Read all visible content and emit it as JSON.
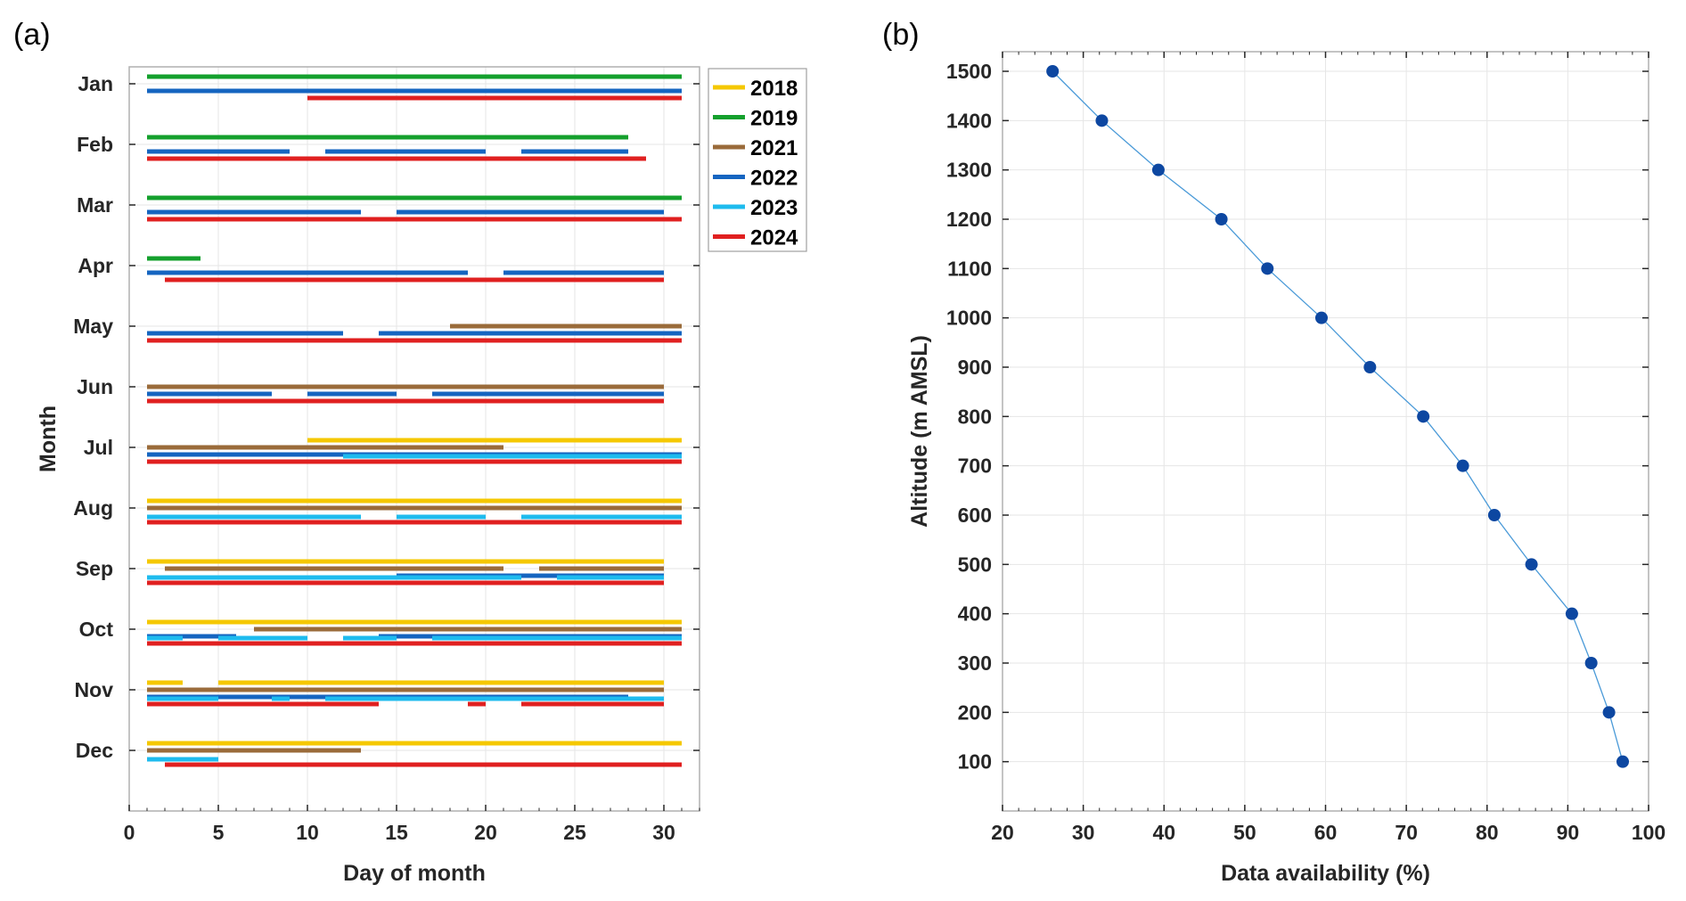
{
  "chart_data": [
    {
      "panel_label": "(a)",
      "type": "bar",
      "orientation": "horizontal-range",
      "xlabel": "Day of month",
      "ylabel": "Month",
      "xlim": [
        0,
        32
      ],
      "x_ticks": [
        0,
        5,
        10,
        15,
        20,
        25,
        30
      ],
      "months": [
        "Jan",
        "Feb",
        "Mar",
        "Apr",
        "May",
        "Jun",
        "Jul",
        "Aug",
        "Sep",
        "Oct",
        "Nov",
        "Dec"
      ],
      "grid": true,
      "legend_position": "top-right",
      "series": [
        {
          "name": "2018",
          "color": "#F5C800",
          "slot": 0
        },
        {
          "name": "2019",
          "color": "#14A02D",
          "slot": 0
        },
        {
          "name": "2021",
          "color": "#9A6B3A",
          "slot": 1
        },
        {
          "name": "2022",
          "color": "#1565C0",
          "slot": 2
        },
        {
          "name": "2023",
          "color": "#1EBBEE",
          "slot": 3
        },
        {
          "name": "2024",
          "color": "#E02020",
          "slot": 4
        }
      ],
      "segments": [
        {
          "month": "Jan",
          "series": "2019",
          "start": 1,
          "end": 31
        },
        {
          "month": "Jan",
          "series": "2022",
          "start": 1,
          "end": 31
        },
        {
          "month": "Jan",
          "series": "2024",
          "start": 10,
          "end": 31
        },
        {
          "month": "Feb",
          "series": "2019",
          "start": 1,
          "end": 28
        },
        {
          "month": "Feb",
          "series": "2022",
          "start": 1,
          "end": 9
        },
        {
          "month": "Feb",
          "series": "2022",
          "start": 11,
          "end": 20
        },
        {
          "month": "Feb",
          "series": "2022",
          "start": 22,
          "end": 28
        },
        {
          "month": "Feb",
          "series": "2024",
          "start": 1,
          "end": 29
        },
        {
          "month": "Mar",
          "series": "2019",
          "start": 1,
          "end": 31
        },
        {
          "month": "Mar",
          "series": "2022",
          "start": 1,
          "end": 13
        },
        {
          "month": "Mar",
          "series": "2022",
          "start": 15,
          "end": 30
        },
        {
          "month": "Mar",
          "series": "2024",
          "start": 1,
          "end": 31
        },
        {
          "month": "Apr",
          "series": "2019",
          "start": 1,
          "end": 4
        },
        {
          "month": "Apr",
          "series": "2022",
          "start": 1,
          "end": 19
        },
        {
          "month": "Apr",
          "series": "2022",
          "start": 21,
          "end": 30
        },
        {
          "month": "Apr",
          "series": "2024",
          "start": 2,
          "end": 30
        },
        {
          "month": "May",
          "series": "2021",
          "start": 18,
          "end": 31
        },
        {
          "month": "May",
          "series": "2022",
          "start": 1,
          "end": 12
        },
        {
          "month": "May",
          "series": "2022",
          "start": 14,
          "end": 31
        },
        {
          "month": "May",
          "series": "2024",
          "start": 1,
          "end": 31
        },
        {
          "month": "Jun",
          "series": "2021",
          "start": 1,
          "end": 30
        },
        {
          "month": "Jun",
          "series": "2022",
          "start": 1,
          "end": 8
        },
        {
          "month": "Jun",
          "series": "2022",
          "start": 10,
          "end": 15
        },
        {
          "month": "Jun",
          "series": "2022",
          "start": 17,
          "end": 30
        },
        {
          "month": "Jun",
          "series": "2024",
          "start": 1,
          "end": 30
        },
        {
          "month": "Jul",
          "series": "2018",
          "start": 10,
          "end": 31
        },
        {
          "month": "Jul",
          "series": "2021",
          "start": 1,
          "end": 21
        },
        {
          "month": "Jul",
          "series": "2022",
          "start": 1,
          "end": 31
        },
        {
          "month": "Jul",
          "series": "2023",
          "start": 12,
          "end": 31
        },
        {
          "month": "Jul",
          "series": "2024",
          "start": 1,
          "end": 31
        },
        {
          "month": "Aug",
          "series": "2018",
          "start": 1,
          "end": 31
        },
        {
          "month": "Aug",
          "series": "2021",
          "start": 1,
          "end": 31
        },
        {
          "month": "Aug",
          "series": "2023",
          "start": 1,
          "end": 13
        },
        {
          "month": "Aug",
          "series": "2023",
          "start": 15,
          "end": 20
        },
        {
          "month": "Aug",
          "series": "2023",
          "start": 22,
          "end": 31
        },
        {
          "month": "Aug",
          "series": "2024",
          "start": 1,
          "end": 31
        },
        {
          "month": "Sep",
          "series": "2018",
          "start": 1,
          "end": 30
        },
        {
          "month": "Sep",
          "series": "2021",
          "start": 2,
          "end": 21
        },
        {
          "month": "Sep",
          "series": "2021",
          "start": 23,
          "end": 30
        },
        {
          "month": "Sep",
          "series": "2022",
          "start": 15,
          "end": 30
        },
        {
          "month": "Sep",
          "series": "2023",
          "start": 1,
          "end": 22
        },
        {
          "month": "Sep",
          "series": "2023",
          "start": 24,
          "end": 30
        },
        {
          "month": "Sep",
          "series": "2024",
          "start": 1,
          "end": 30
        },
        {
          "month": "Oct",
          "series": "2018",
          "start": 1,
          "end": 31
        },
        {
          "month": "Oct",
          "series": "2021",
          "start": 7,
          "end": 31
        },
        {
          "month": "Oct",
          "series": "2022",
          "start": 1,
          "end": 6
        },
        {
          "month": "Oct",
          "series": "2022",
          "start": 14,
          "end": 31
        },
        {
          "month": "Oct",
          "series": "2023",
          "start": 1,
          "end": 3
        },
        {
          "month": "Oct",
          "series": "2023",
          "start": 5,
          "end": 10
        },
        {
          "month": "Oct",
          "series": "2023",
          "start": 12,
          "end": 15
        },
        {
          "month": "Oct",
          "series": "2023",
          "start": 17,
          "end": 31
        },
        {
          "month": "Oct",
          "series": "2024",
          "start": 1,
          "end": 31
        },
        {
          "month": "Nov",
          "series": "2018",
          "start": 1,
          "end": 3
        },
        {
          "month": "Nov",
          "series": "2018",
          "start": 5,
          "end": 30
        },
        {
          "month": "Nov",
          "series": "2021",
          "start": 1,
          "end": 30
        },
        {
          "month": "Nov",
          "series": "2022",
          "start": 1,
          "end": 28
        },
        {
          "month": "Nov",
          "series": "2023",
          "start": 1,
          "end": 5
        },
        {
          "month": "Nov",
          "series": "2023",
          "start": 8,
          "end": 9
        },
        {
          "month": "Nov",
          "series": "2023",
          "start": 11,
          "end": 30
        },
        {
          "month": "Nov",
          "series": "2024",
          "start": 1,
          "end": 14
        },
        {
          "month": "Nov",
          "series": "2024",
          "start": 19,
          "end": 20
        },
        {
          "month": "Nov",
          "series": "2024",
          "start": 22,
          "end": 30
        },
        {
          "month": "Dec",
          "series": "2018",
          "start": 1,
          "end": 31
        },
        {
          "month": "Dec",
          "series": "2021",
          "start": 1,
          "end": 13
        },
        {
          "month": "Dec",
          "series": "2023",
          "start": 1,
          "end": 5
        },
        {
          "month": "Dec",
          "series": "2024",
          "start": 2,
          "end": 31
        }
      ]
    },
    {
      "panel_label": "(b)",
      "type": "line",
      "xlabel": "Data availability (%)",
      "ylabel": "Altitude (m AMSL)",
      "xlim": [
        20,
        100
      ],
      "ylim": [
        0,
        1500
      ],
      "x_ticks": [
        20,
        30,
        40,
        50,
        60,
        70,
        80,
        90,
        100
      ],
      "y_ticks": [
        100,
        200,
        300,
        400,
        500,
        600,
        700,
        800,
        900,
        1000,
        1100,
        1200,
        1300,
        1400,
        1500
      ],
      "grid": true,
      "line_color": "#4A9AD8",
      "marker_color": "#0D47A1",
      "points": [
        {
          "x": 26.2,
          "y": 1500
        },
        {
          "x": 32.3,
          "y": 1400
        },
        {
          "x": 39.3,
          "y": 1300
        },
        {
          "x": 47.1,
          "y": 1200
        },
        {
          "x": 52.8,
          "y": 1100
        },
        {
          "x": 59.5,
          "y": 1000
        },
        {
          "x": 65.5,
          "y": 900
        },
        {
          "x": 72.1,
          "y": 800
        },
        {
          "x": 77.0,
          "y": 700
        },
        {
          "x": 80.9,
          "y": 600
        },
        {
          "x": 85.5,
          "y": 500
        },
        {
          "x": 90.5,
          "y": 400
        },
        {
          "x": 92.9,
          "y": 300
        },
        {
          "x": 95.1,
          "y": 200
        },
        {
          "x": 96.8,
          "y": 100
        }
      ]
    }
  ]
}
